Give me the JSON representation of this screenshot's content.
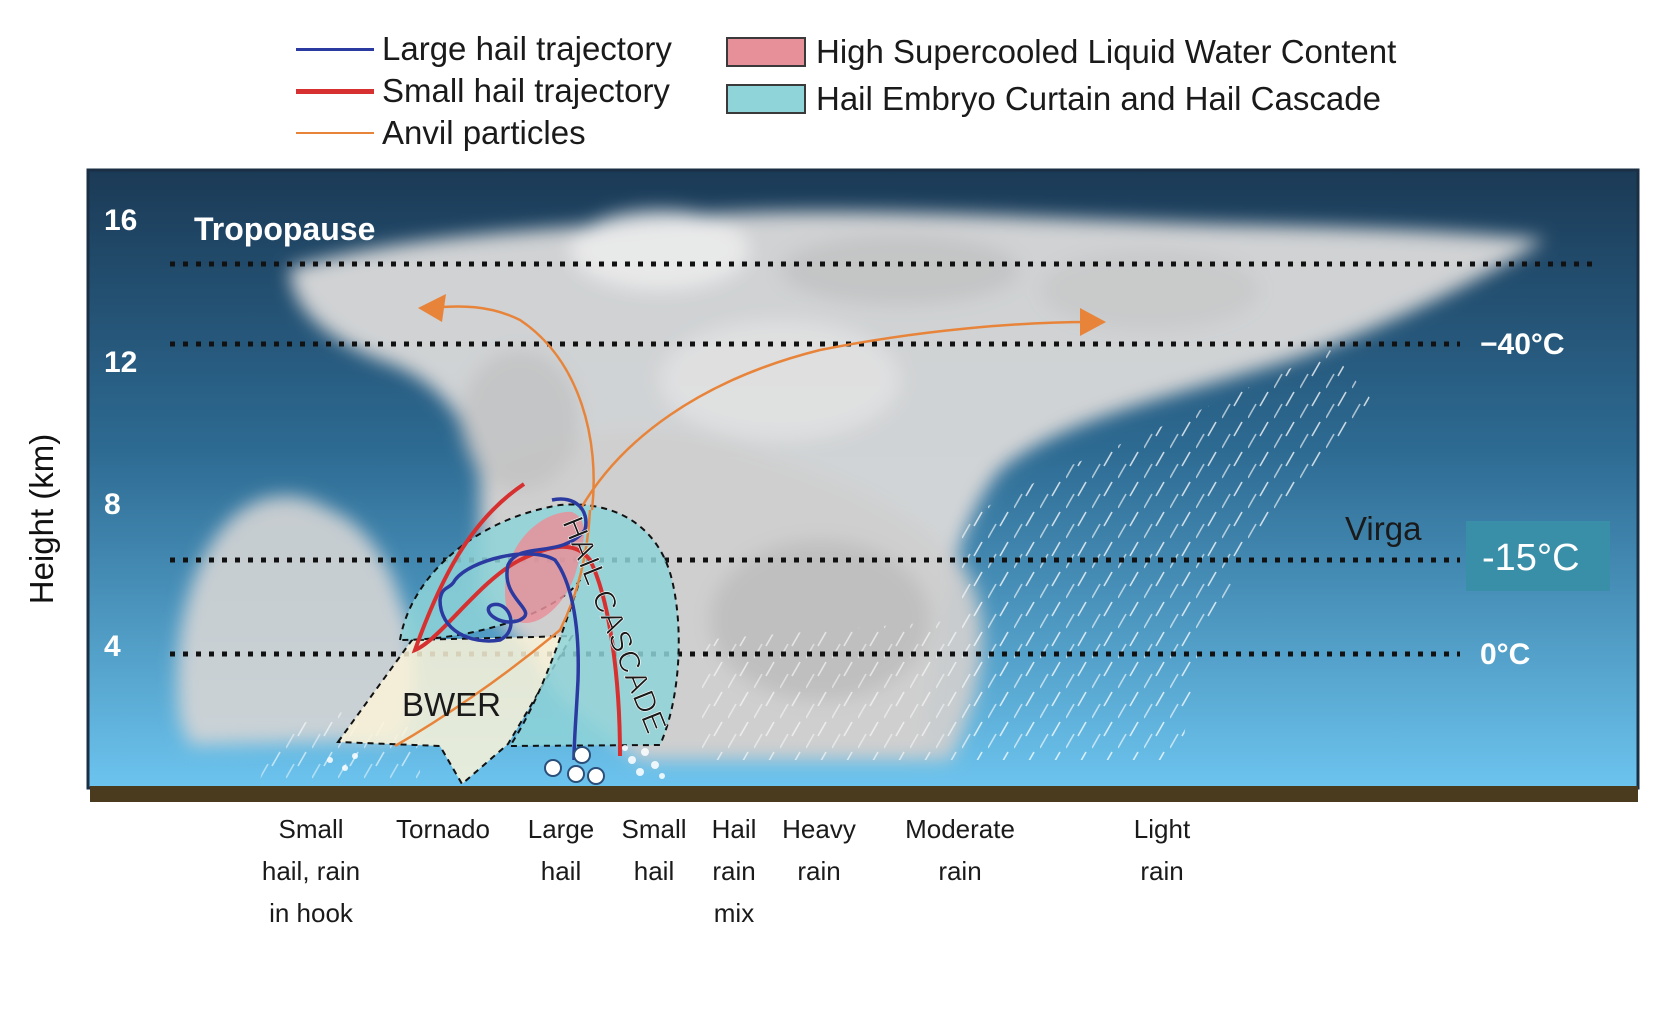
{
  "legend": {
    "lines": [
      {
        "label": "Large hail trajectory",
        "color": "#2b3aa0"
      },
      {
        "label": "Small hail trajectory",
        "color": "#d63030"
      },
      {
        "label": "Anvil particles",
        "color": "#e8843a"
      }
    ],
    "boxes": [
      {
        "label": "High Supercooled Liquid Water Content",
        "color": "#e8909a"
      },
      {
        "label": "Hail Embryo Curtain and Hail Cascade",
        "color": "#8ed4d8"
      }
    ]
  },
  "axis": {
    "ylabel": "Height (km)",
    "ticks": [
      "16",
      "12",
      "8",
      "4"
    ]
  },
  "levels": {
    "tropopause": "Tropopause",
    "minus40": "−40°C",
    "minus15": "-15°C",
    "zero": "0°C"
  },
  "annotations": {
    "virga": "Virga",
    "bwer": "BWER",
    "hail_cascade": "HAIL CASCADE"
  },
  "bottom_labels": [
    "Small\nhail, rain\nin hook",
    "Tornado",
    "Large\nhail",
    "Small\nhail",
    "Hail\nrain\nmix",
    "Heavy\nrain",
    "Moderate\nrain",
    "Light\nrain"
  ],
  "colors": {
    "sky_top": "#1b3a56",
    "sky_bottom": "#6cc4ee",
    "ground": "#4a3a1e",
    "minus15_box": "#3a8fa8"
  }
}
